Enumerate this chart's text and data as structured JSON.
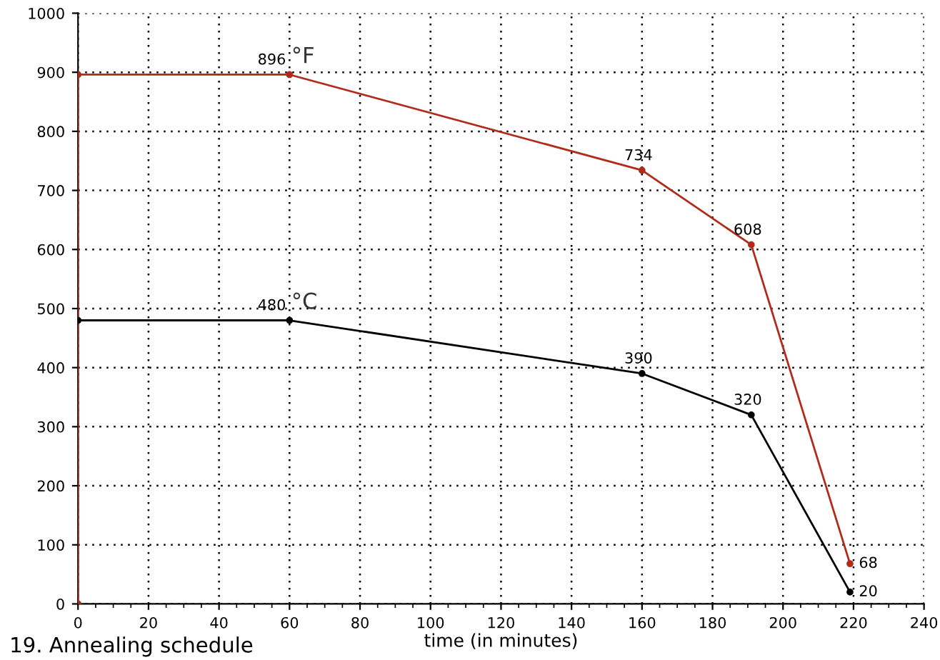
{
  "chart_data": {
    "type": "line",
    "title": "19. Annealing schedule",
    "xlabel": "time (in minutes)",
    "xlim": [
      0,
      240
    ],
    "xticks": [
      0,
      20,
      40,
      60,
      80,
      100,
      120,
      140,
      160,
      180,
      200,
      220,
      240
    ],
    "ylim": [
      0,
      1000
    ],
    "yticks": [
      0,
      100,
      200,
      300,
      400,
      500,
      600,
      700,
      800,
      900,
      1000
    ],
    "grid": true,
    "marker": "circle",
    "line_style": "solid",
    "series": [
      {
        "name": "°F",
        "color": "#b22a1a",
        "x": [
          0,
          0,
          60,
          160,
          191,
          219
        ],
        "values": [
          0,
          896,
          896,
          734,
          608,
          68
        ],
        "value_labels": [
          null,
          null,
          "896",
          "734",
          "608",
          "68"
        ]
      },
      {
        "name": "°C",
        "color": "#000000",
        "x": [
          0,
          60,
          160,
          191,
          219
        ],
        "values": [
          480,
          480,
          390,
          320,
          20
        ],
        "value_labels": [
          null,
          "480",
          "390",
          "320",
          "20"
        ]
      }
    ]
  }
}
